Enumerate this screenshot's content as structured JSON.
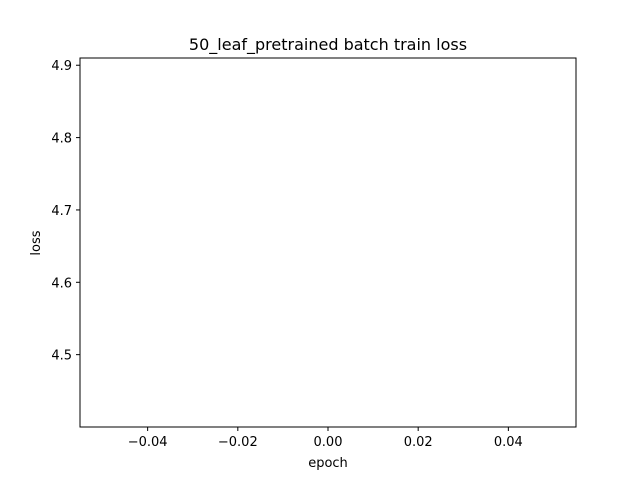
{
  "chart_data": {
    "type": "line",
    "title": "50_leaf_pretrained batch train loss",
    "xlabel": "epoch",
    "ylabel": "loss",
    "x": [
      0
    ],
    "series": [
      {
        "values": [
          null
        ]
      }
    ],
    "xlim": [
      -0.055,
      0.055
    ],
    "ylim": [
      4.4,
      4.91
    ],
    "xticks": [
      -0.04,
      -0.02,
      0.0,
      0.02,
      0.04
    ],
    "xtick_labels": [
      "−0.04",
      "−0.02",
      "0.00",
      "0.02",
      "0.04"
    ],
    "yticks": [
      4.5,
      4.6,
      4.7,
      4.8,
      4.9
    ],
    "ytick_labels": [
      "4.5",
      "4.6",
      "4.7",
      "4.8",
      "4.9"
    ],
    "grid": false,
    "legend": "none",
    "line_color": "#1f77b4"
  }
}
